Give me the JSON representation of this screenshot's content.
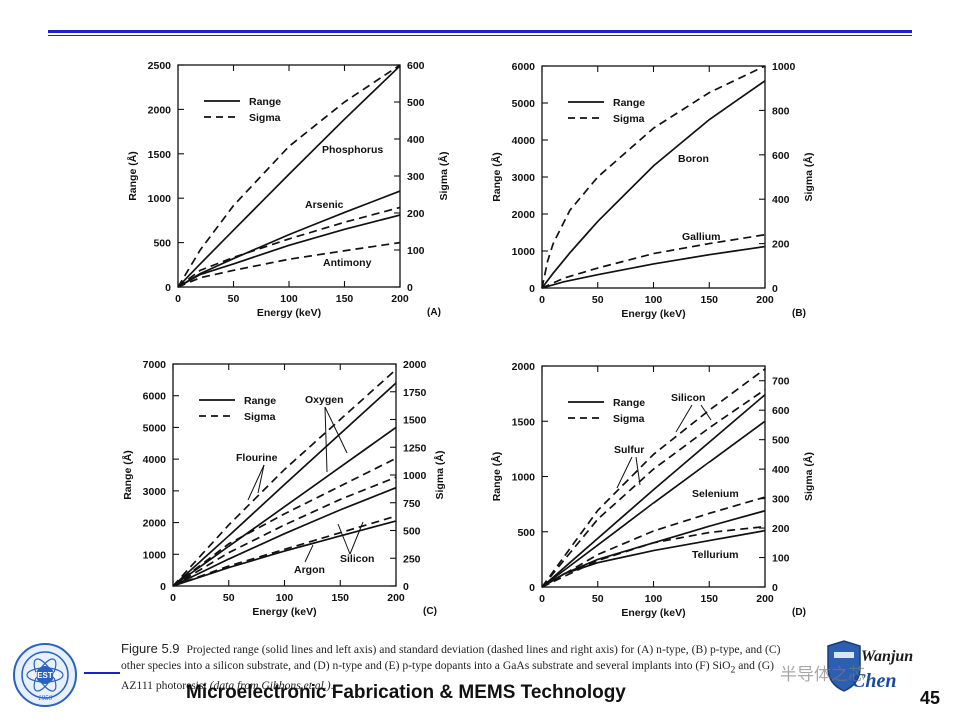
{
  "header": {
    "rule_color": "#1f1fd0"
  },
  "caption": {
    "figure": "Figure 5.9",
    "text_before_sio2": "Projected range (solid lines and left axis) and standard deviation (dashed lines and right axis) for (A) n-type, (B) p-type, and (C) other species into a silicon substrate, and (D) n-type and (E) p-type dopants into a GaAs substrate and several implants into (F) SiO",
    "subscript": "2",
    "text_after_sio2": " and (G) AZ111 photoresist ",
    "citation": "(data from Gibbons et al.)",
    "end": "."
  },
  "footer": {
    "course": "Microelectronic Fabrication & MEMS Technology",
    "page": "45",
    "watermark": "半导体之芯",
    "brand_top": "Wanjun",
    "brand_bottom": "Chen",
    "left_logo_text": "UESTC",
    "left_logo_year": "1956"
  },
  "chart_data": [
    {
      "type": "line",
      "panel": "(A)",
      "xlabel": "Energy (keV)",
      "ylabel": "Range (Å)",
      "y2label": "Sigma (Å)",
      "xlim": [
        0,
        200
      ],
      "xticks": [
        0,
        50,
        100,
        150,
        200
      ],
      "ylim": [
        0,
        2500
      ],
      "yticks": [
        0,
        500,
        1000,
        1500,
        2000,
        2500
      ],
      "y2lim": [
        0,
        600
      ],
      "y2ticks": [
        0,
        100,
        200,
        300,
        400,
        500,
        600
      ],
      "legend": [
        "Range",
        "Sigma"
      ],
      "series": [
        {
          "name": "Phosphorus range",
          "style": "solid",
          "axis": "left",
          "x": [
            0,
            20,
            50,
            100,
            150,
            200
          ],
          "y": [
            0,
            260,
            640,
            1270,
            1890,
            2490
          ]
        },
        {
          "name": "Phosphorus sigma",
          "style": "dashed",
          "axis": "right",
          "x": [
            0,
            20,
            50,
            100,
            150,
            200
          ],
          "y": [
            0,
            100,
            220,
            380,
            500,
            600
          ]
        },
        {
          "name": "Arsenic range",
          "style": "solid",
          "axis": "left",
          "x": [
            0,
            20,
            50,
            100,
            150,
            200
          ],
          "y": [
            0,
            150,
            320,
            590,
            840,
            1080
          ]
        },
        {
          "name": "Arsenic sigma",
          "style": "dashed",
          "axis": "right",
          "x": [
            0,
            20,
            50,
            100,
            150,
            200
          ],
          "y": [
            0,
            45,
            80,
            130,
            175,
            215
          ]
        },
        {
          "name": "Antimony range",
          "style": "solid",
          "axis": "left",
          "x": [
            0,
            20,
            50,
            100,
            150,
            200
          ],
          "y": [
            0,
            140,
            260,
            470,
            650,
            810
          ]
        },
        {
          "name": "Antimony sigma",
          "style": "dashed",
          "axis": "right",
          "x": [
            0,
            20,
            50,
            100,
            150,
            200
          ],
          "y": [
            0,
            25,
            45,
            75,
            98,
            120
          ]
        }
      ],
      "annotations": [
        "Phosphorus",
        "Arsenic",
        "Antimony"
      ]
    },
    {
      "type": "line",
      "panel": "(B)",
      "xlabel": "Energy (keV)",
      "ylabel": "Range (Å)",
      "y2label": "Sigma (Å)",
      "xlim": [
        0,
        200
      ],
      "xticks": [
        0,
        50,
        100,
        150,
        200
      ],
      "ylim": [
        0,
        6000
      ],
      "yticks": [
        0,
        1000,
        2000,
        3000,
        4000,
        5000,
        6000
      ],
      "y2lim": [
        0,
        1000
      ],
      "y2ticks": [
        0,
        200,
        400,
        600,
        800,
        1000
      ],
      "legend": [
        "Range",
        "Sigma"
      ],
      "series": [
        {
          "name": "Boron range",
          "style": "solid",
          "axis": "left",
          "x": [
            0,
            10,
            25,
            50,
            100,
            150,
            200
          ],
          "y": [
            0,
            400,
            950,
            1800,
            3300,
            4550,
            5600
          ]
        },
        {
          "name": "Boron sigma",
          "style": "dashed",
          "axis": "right",
          "x": [
            0,
            5,
            10,
            25,
            50,
            100,
            150,
            200
          ],
          "y": [
            0,
            120,
            200,
            350,
            500,
            720,
            880,
            1000
          ]
        },
        {
          "name": "Gallium range",
          "style": "solid",
          "axis": "left",
          "x": [
            0,
            20,
            50,
            100,
            150,
            200
          ],
          "y": [
            0,
            170,
            360,
            650,
            900,
            1120
          ]
        },
        {
          "name": "Gallium sigma",
          "style": "dashed",
          "axis": "right",
          "x": [
            0,
            20,
            50,
            100,
            150,
            200
          ],
          "y": [
            0,
            45,
            90,
            155,
            200,
            240
          ]
        }
      ],
      "annotations": [
        "Boron",
        "Gallium"
      ]
    },
    {
      "type": "line",
      "panel": "(C)",
      "xlabel": "Energy (keV)",
      "ylabel": "Range (Å)",
      "y2label": "Sigma (Å)",
      "xlim": [
        0,
        200
      ],
      "xticks": [
        0,
        50,
        100,
        150,
        200
      ],
      "ylim": [
        0,
        7000
      ],
      "yticks": [
        0,
        1000,
        2000,
        3000,
        4000,
        5000,
        6000,
        7000
      ],
      "y2lim": [
        0,
        2000
      ],
      "y2ticks": [
        0,
        250,
        500,
        750,
        1000,
        1250,
        1500,
        1750,
        2000
      ],
      "legend": [
        "Range",
        "Sigma"
      ],
      "series": [
        {
          "name": "Oxygen range",
          "style": "solid",
          "axis": "left",
          "x": [
            0,
            50,
            100,
            150,
            200
          ],
          "y": [
            0,
            1580,
            3200,
            4800,
            6400
          ]
        },
        {
          "name": "Flourine range",
          "style": "solid",
          "axis": "left",
          "x": [
            0,
            50,
            100,
            150,
            200
          ],
          "y": [
            0,
            1250,
            2500,
            3750,
            5000
          ]
        },
        {
          "name": "Silicon range",
          "style": "solid",
          "axis": "left",
          "x": [
            0,
            50,
            100,
            150,
            200
          ],
          "y": [
            0,
            850,
            1650,
            2400,
            3100
          ]
        },
        {
          "name": "Argon range",
          "style": "solid",
          "axis": "left",
          "x": [
            0,
            50,
            100,
            150,
            200
          ],
          "y": [
            0,
            580,
            1100,
            1580,
            2050
          ]
        },
        {
          "name": "Oxygen sigma",
          "style": "dashed",
          "axis": "right",
          "x": [
            0,
            50,
            100,
            150,
            200
          ],
          "y": [
            0,
            550,
            1050,
            1500,
            1950
          ]
        },
        {
          "name": "Flourine sigma",
          "style": "dashed",
          "axis": "right",
          "x": [
            0,
            50,
            100,
            150,
            200
          ],
          "y": [
            0,
            380,
            650,
            900,
            1150
          ]
        },
        {
          "name": "Silicon sigma",
          "style": "dashed",
          "axis": "right",
          "x": [
            0,
            50,
            100,
            150,
            200
          ],
          "y": [
            0,
            300,
            550,
            780,
            980
          ]
        },
        {
          "name": "Argon sigma",
          "style": "dashed",
          "axis": "right",
          "x": [
            0,
            50,
            100,
            150,
            200
          ],
          "y": [
            0,
            180,
            330,
            480,
            630
          ]
        }
      ],
      "annotations": [
        "Oxygen",
        "Flourine",
        "Silicon",
        "Argon"
      ]
    },
    {
      "type": "line",
      "panel": "(D)",
      "xlabel": "Energy (keV)",
      "ylabel": "Range (Å)",
      "y2label": "Sigma (Å)",
      "xlim": [
        0,
        200
      ],
      "xticks": [
        0,
        50,
        100,
        150,
        200
      ],
      "ylim": [
        0,
        2000
      ],
      "yticks": [
        0,
        500,
        1000,
        1500,
        2000
      ],
      "y2lim": [
        0,
        750
      ],
      "y2ticks": [
        0,
        100,
        200,
        300,
        400,
        500,
        600,
        700
      ],
      "legend": [
        "Range",
        "Sigma"
      ],
      "series": [
        {
          "name": "Silicon range",
          "style": "solid",
          "axis": "left",
          "x": [
            0,
            50,
            100,
            150,
            200
          ],
          "y": [
            0,
            440,
            880,
            1310,
            1740
          ]
        },
        {
          "name": "Sulfur range",
          "style": "solid",
          "axis": "left",
          "x": [
            0,
            50,
            100,
            150,
            200
          ],
          "y": [
            0,
            380,
            760,
            1130,
            1500
          ]
        },
        {
          "name": "Selenium range",
          "style": "solid",
          "axis": "left",
          "x": [
            0,
            20,
            50,
            100,
            150,
            200
          ],
          "y": [
            0,
            120,
            250,
            400,
            550,
            690
          ]
        },
        {
          "name": "Tellurium range",
          "style": "solid",
          "axis": "left",
          "x": [
            0,
            20,
            50,
            100,
            150,
            200
          ],
          "y": [
            0,
            120,
            220,
            330,
            420,
            510
          ]
        },
        {
          "name": "Silicon sigma",
          "style": "dashed",
          "axis": "right",
          "x": [
            0,
            50,
            100,
            150,
            200
          ],
          "y": [
            0,
            260,
            450,
            600,
            740
          ]
        },
        {
          "name": "Sulfur sigma",
          "style": "dashed",
          "axis": "right",
          "x": [
            0,
            50,
            100,
            150,
            200
          ],
          "y": [
            0,
            230,
            400,
            540,
            670
          ]
        },
        {
          "name": "Selenium sigma",
          "style": "dashed",
          "axis": "right",
          "x": [
            0,
            50,
            100,
            150,
            200
          ],
          "y": [
            0,
            110,
            190,
            250,
            305
          ]
        },
        {
          "name": "Tellurium sigma",
          "style": "dashed",
          "axis": "right",
          "x": [
            0,
            50,
            100,
            150,
            200
          ],
          "y": [
            0,
            90,
            150,
            185,
            205
          ]
        }
      ],
      "annotations": [
        "Silicon",
        "Sulfur",
        "Selenium",
        "Tellurium"
      ]
    }
  ]
}
